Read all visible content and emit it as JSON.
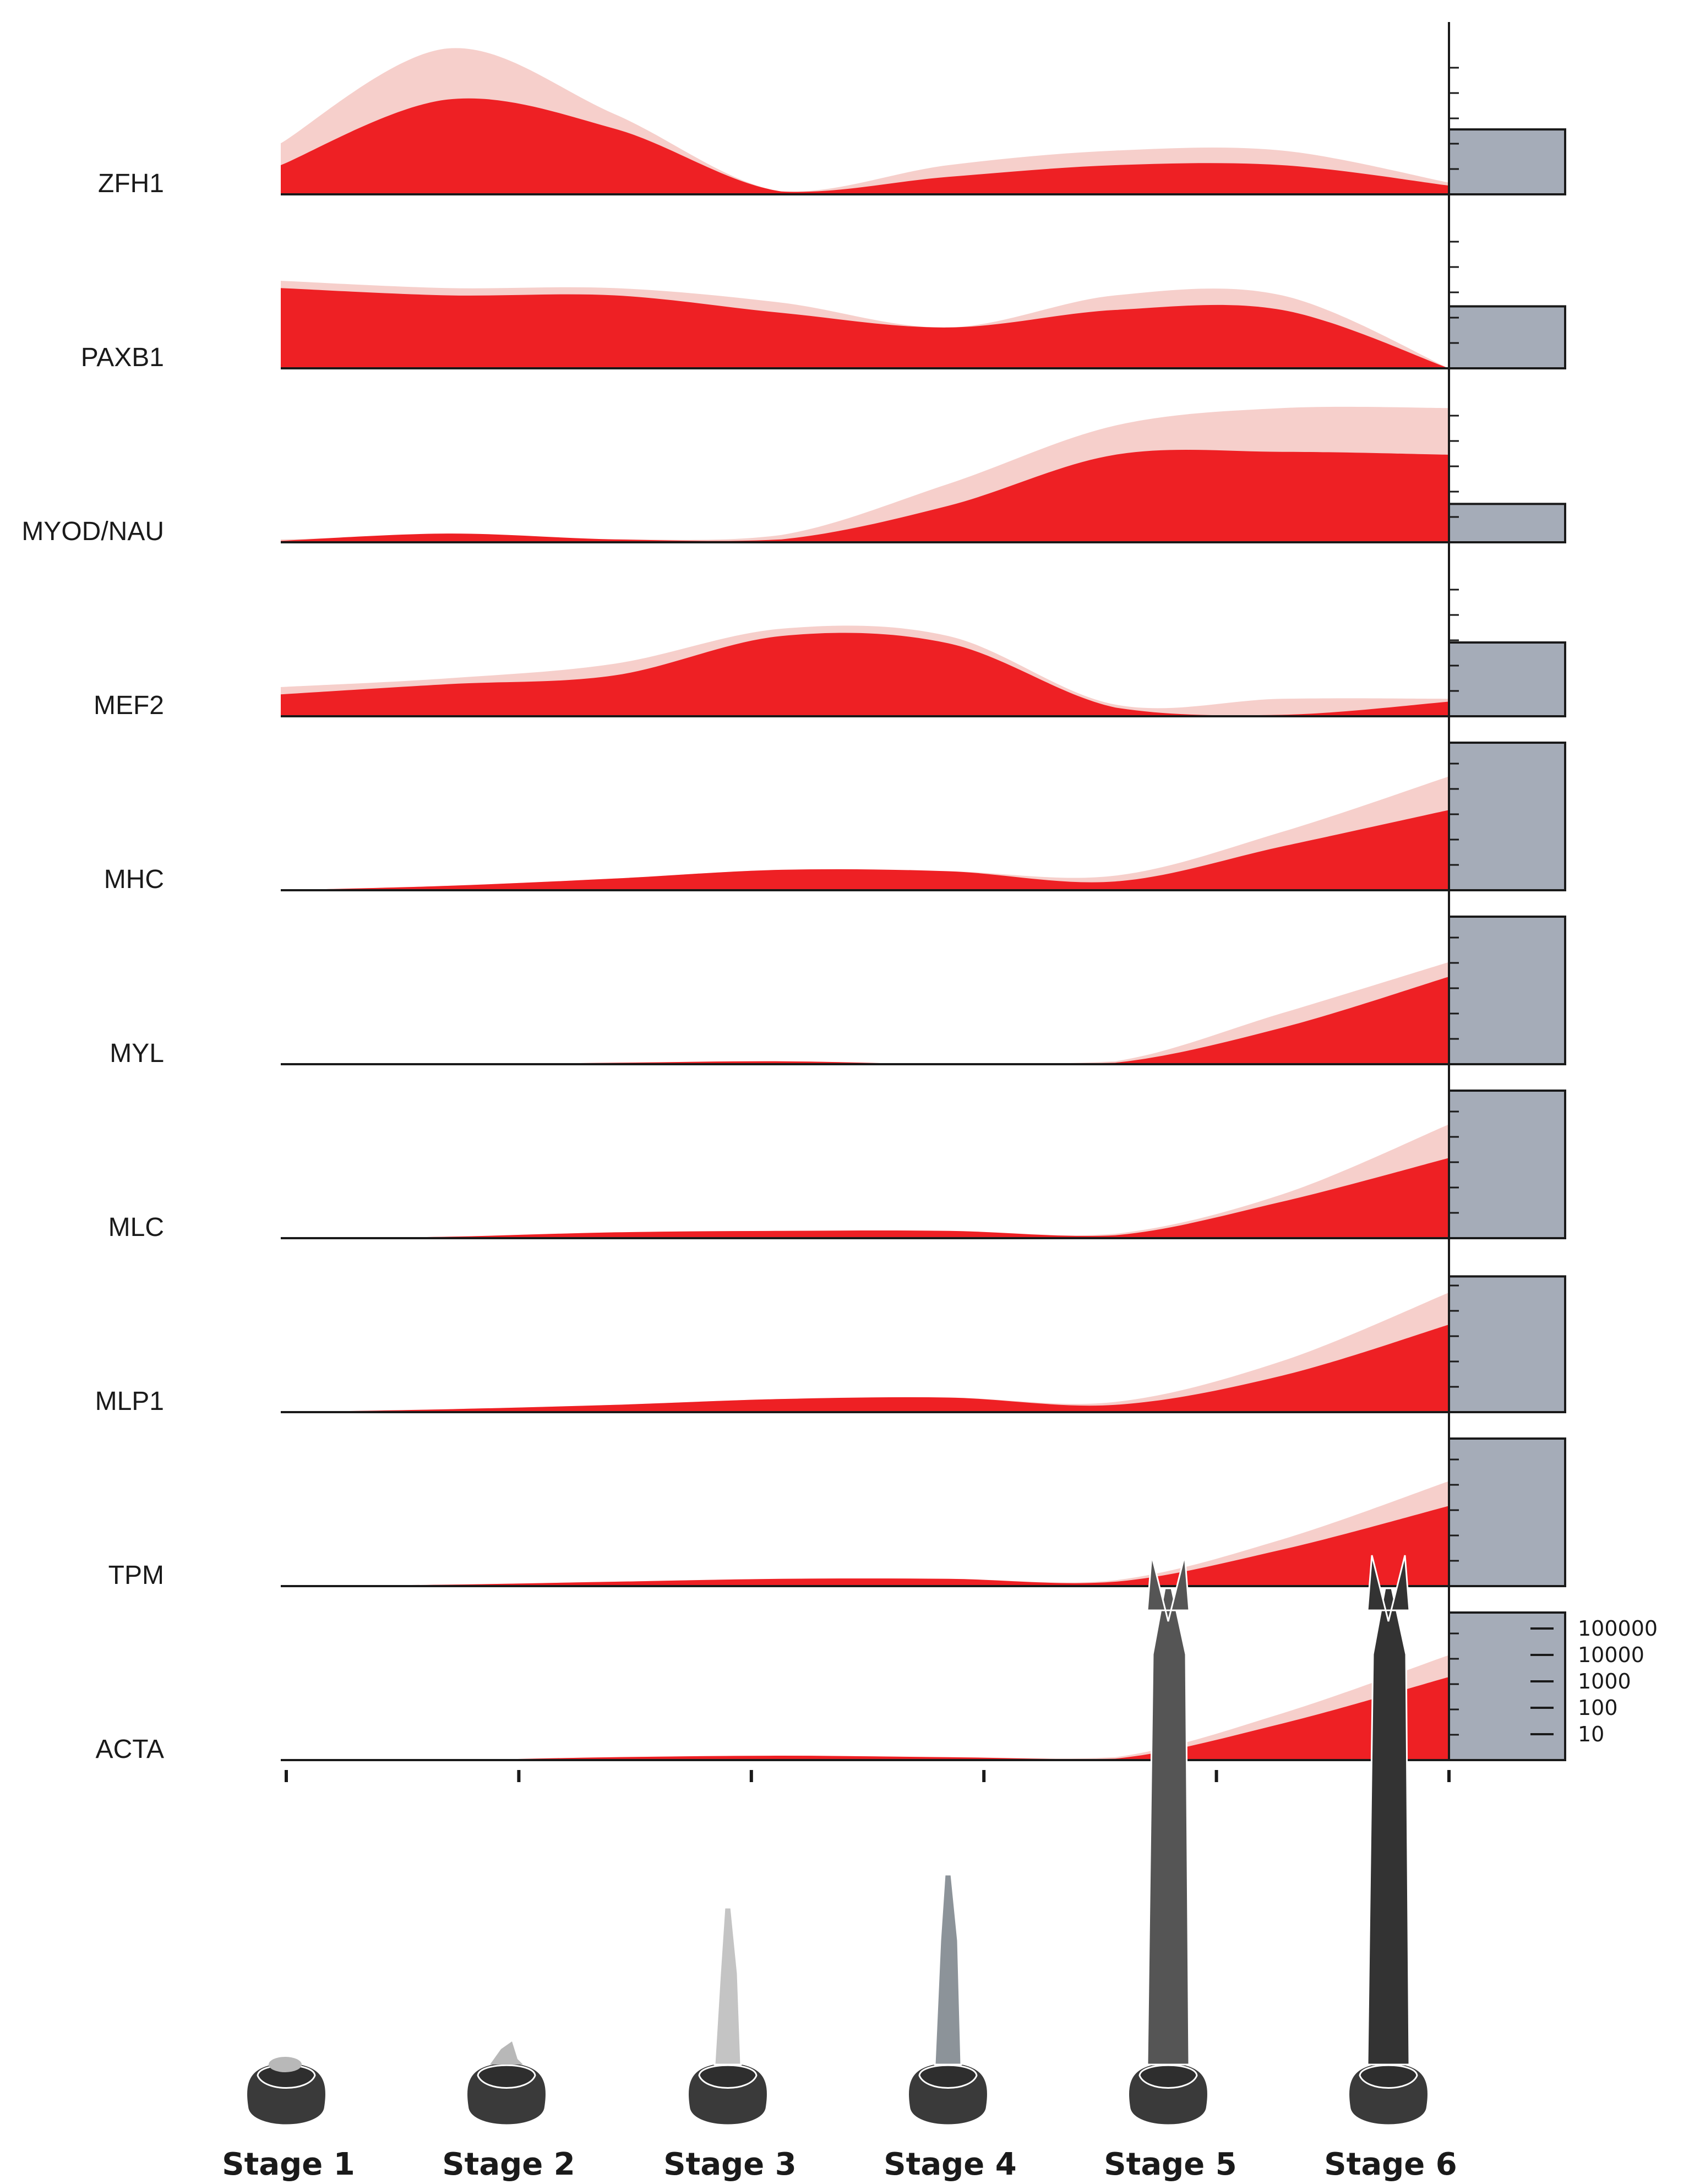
{
  "chart_data": {
    "type": "area",
    "x": [
      "Stage 1",
      "Stage 2",
      "Stage 3",
      "Stage 4",
      "Stage 5",
      "Stage 6"
    ],
    "colors": {
      "light": "#f6cfcb",
      "dark": "#ee2024",
      "bar": "#a5acb8"
    },
    "bar_scale_labels": [
      "100000",
      "10000",
      "1000",
      "100",
      "10"
    ],
    "rows": [
      {
        "gene": "ZFH1",
        "light": [
          0.35,
          1.0,
          0.55,
          0.02,
          0.2,
          0.3,
          0.3,
          0.08
        ],
        "dark": [
          0.2,
          0.65,
          0.45,
          0.02,
          0.12,
          0.2,
          0.2,
          0.06
        ],
        "bar": 0.44
      },
      {
        "gene": "PAXB1",
        "light": [
          0.6,
          0.55,
          0.55,
          0.45,
          0.28,
          0.5,
          0.5,
          0.0
        ],
        "dark": [
          0.55,
          0.5,
          0.5,
          0.38,
          0.28,
          0.4,
          0.4,
          0.0
        ],
        "bar": 0.42
      },
      {
        "gene": "MYOD/NAU",
        "light": [
          0.02,
          0.04,
          0.02,
          0.05,
          0.4,
          0.8,
          0.92,
          0.92
        ],
        "dark": [
          0.01,
          0.06,
          0.02,
          0.02,
          0.25,
          0.6,
          0.62,
          0.6
        ],
        "bar": 0.26
      },
      {
        "gene": "MEF2",
        "light": [
          0.2,
          0.26,
          0.36,
          0.6,
          0.55,
          0.08,
          0.12,
          0.12
        ],
        "dark": [
          0.15,
          0.22,
          0.28,
          0.55,
          0.5,
          0.06,
          0.01,
          0.1
        ],
        "bar": 0.5
      },
      {
        "gene": "MHC",
        "light": [
          0.0,
          0.03,
          0.08,
          0.14,
          0.13,
          0.1,
          0.4,
          0.78
        ],
        "dark": [
          0.0,
          0.03,
          0.08,
          0.14,
          0.13,
          0.06,
          0.3,
          0.55
        ],
        "bar": 1.0
      },
      {
        "gene": "MYL",
        "light": [
          0.0,
          0.0,
          0.01,
          0.02,
          0.0,
          0.02,
          0.35,
          0.7
        ],
        "dark": [
          0.0,
          0.0,
          0.01,
          0.02,
          0.0,
          0.01,
          0.25,
          0.6
        ],
        "bar": 1.0
      },
      {
        "gene": "MLC",
        "light": [
          0.0,
          0.01,
          0.04,
          0.05,
          0.05,
          0.03,
          0.3,
          0.78
        ],
        "dark": [
          0.0,
          0.01,
          0.04,
          0.05,
          0.05,
          0.02,
          0.25,
          0.55
        ],
        "bar": 1.0
      },
      {
        "gene": "MLP1",
        "light": [
          0.0,
          0.02,
          0.05,
          0.09,
          0.1,
          0.07,
          0.35,
          0.82
        ],
        "dark": [
          0.0,
          0.02,
          0.05,
          0.09,
          0.1,
          0.05,
          0.25,
          0.6
        ],
        "bar": 0.92
      },
      {
        "gene": "TPM",
        "light": [
          0.0,
          0.01,
          0.03,
          0.05,
          0.05,
          0.04,
          0.32,
          0.72
        ],
        "dark": [
          0.0,
          0.01,
          0.03,
          0.05,
          0.05,
          0.03,
          0.25,
          0.55
        ],
        "bar": 1.0
      },
      {
        "gene": "ACTA",
        "light": [
          0.0,
          0.0,
          0.02,
          0.03,
          0.02,
          0.02,
          0.32,
          0.72
        ],
        "dark": [
          0.0,
          0.0,
          0.02,
          0.03,
          0.02,
          0.01,
          0.25,
          0.57
        ],
        "bar": 1.0
      }
    ]
  }
}
